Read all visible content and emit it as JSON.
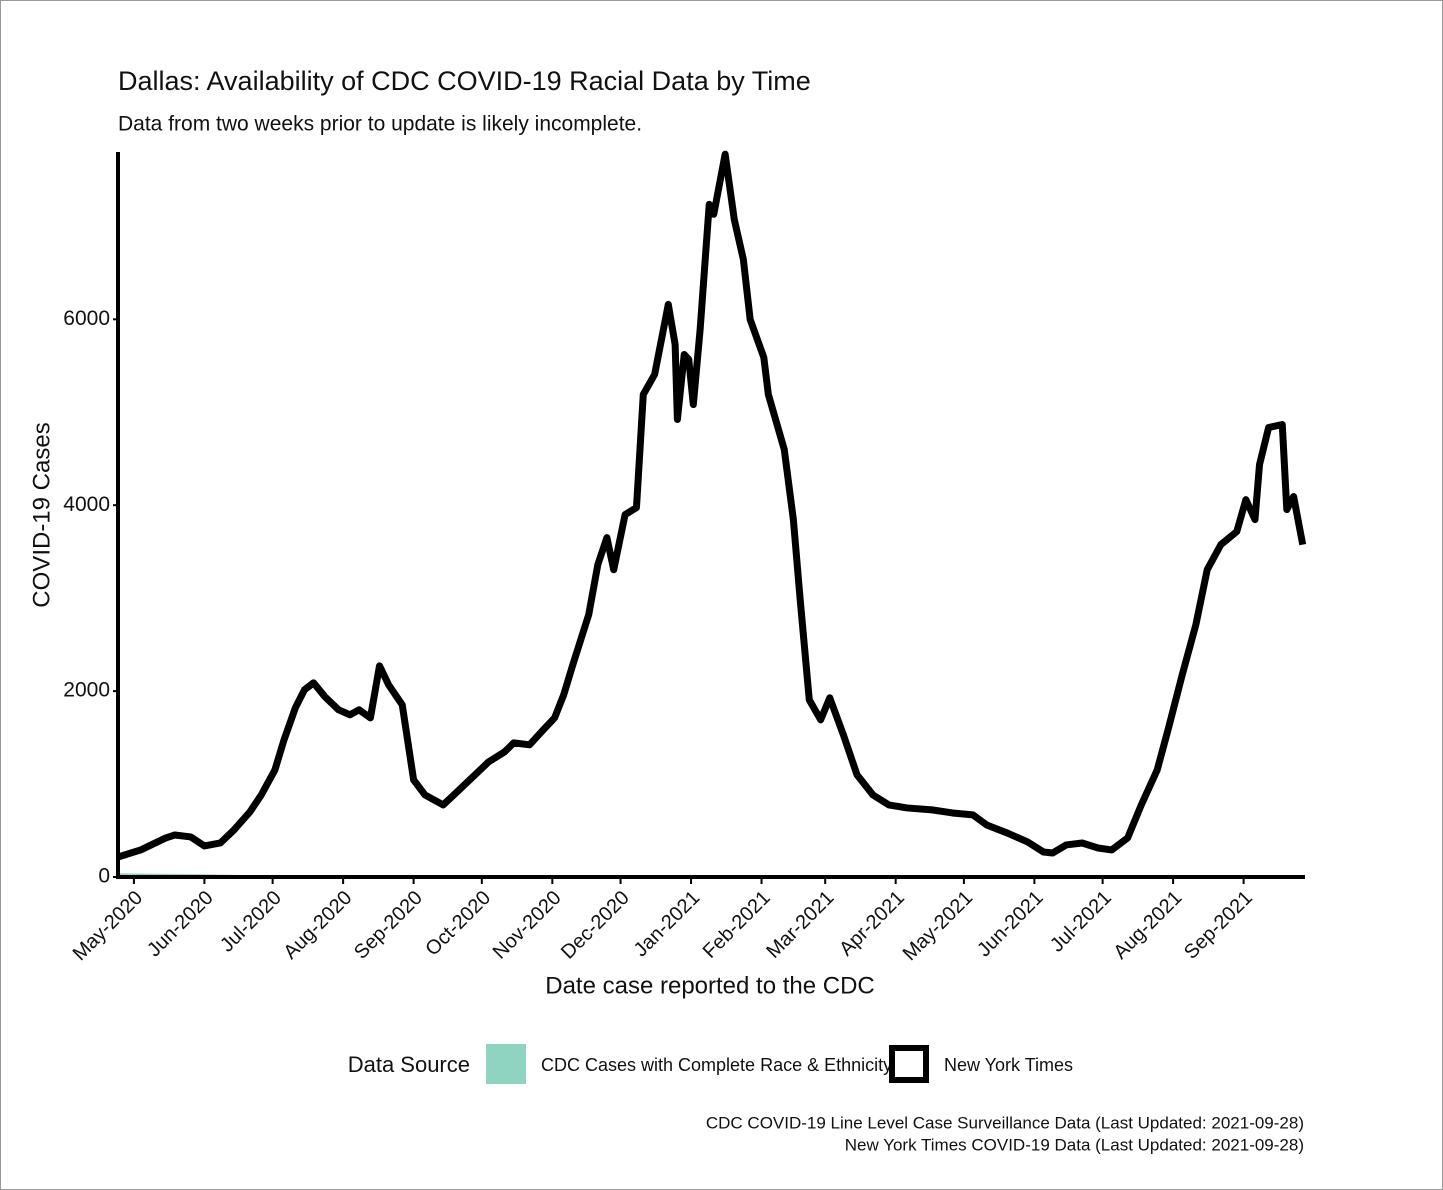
{
  "chart_data": {
    "type": "line",
    "title": "Dallas: Availability of CDC COVID-19 Racial Data by Time",
    "subtitle": "Data from two weeks prior to update is likely incomplete.",
    "x_label": "Date case reported to the CDC",
    "y_label": "COVID-19 Cases",
    "legend_title": "Data Source",
    "caption": [
      "CDC COVID-19 Line Level Case Surveillance Data (Last Updated: 2021-09-28)",
      "New York Times COVID-19 Data (Last Updated: 2021-09-28)"
    ],
    "xlim": [
      "2020-04-24",
      "2021-09-28"
    ],
    "ylim": [
      0,
      7800
    ],
    "yticks": [
      0,
      2000,
      4000,
      6000
    ],
    "xticks": [
      {
        "value": "2020-05-01",
        "label": "May-2020"
      },
      {
        "value": "2020-06-01",
        "label": "Jun-2020"
      },
      {
        "value": "2020-07-01",
        "label": "Jul-2020"
      },
      {
        "value": "2020-08-01",
        "label": "Aug-2020"
      },
      {
        "value": "2020-09-01",
        "label": "Sep-2020"
      },
      {
        "value": "2020-10-01",
        "label": "Oct-2020"
      },
      {
        "value": "2020-11-01",
        "label": "Nov-2020"
      },
      {
        "value": "2020-12-01",
        "label": "Dec-2020"
      },
      {
        "value": "2021-01-01",
        "label": "Jan-2021"
      },
      {
        "value": "2021-02-01",
        "label": "Feb-2021"
      },
      {
        "value": "2021-03-01",
        "label": "Mar-2021"
      },
      {
        "value": "2021-04-01",
        "label": "Apr-2021"
      },
      {
        "value": "2021-05-01",
        "label": "May-2021"
      },
      {
        "value": "2021-06-01",
        "label": "Jun-2021"
      },
      {
        "value": "2021-07-01",
        "label": "Jul-2021"
      },
      {
        "value": "2021-08-01",
        "label": "Aug-2021"
      },
      {
        "value": "2021-09-01",
        "label": "Sep-2021"
      }
    ],
    "series": [
      {
        "name": "CDC Cases with Complete Race & Ethnicity",
        "color": "#8fd3c1",
        "style": "area",
        "x": [
          "2020-04-24",
          "2020-06-01",
          "2020-07-01",
          "2020-09-01",
          "2021-01-01",
          "2021-04-01",
          "2021-09-27"
        ],
        "values": [
          40,
          30,
          15,
          10,
          10,
          8,
          5
        ]
      },
      {
        "name": "New York Times",
        "color": "#000000",
        "style": "line",
        "x": [
          "2020-04-24",
          "2020-05-04",
          "2020-05-15",
          "2020-05-19",
          "2020-05-26",
          "2020-06-01",
          "2020-06-08",
          "2020-06-14",
          "2020-06-21",
          "2020-06-26",
          "2020-07-02",
          "2020-07-06",
          "2020-07-11",
          "2020-07-15",
          "2020-07-19",
          "2020-07-24",
          "2020-07-30",
          "2020-08-04",
          "2020-08-08",
          "2020-08-13",
          "2020-08-17",
          "2020-08-21",
          "2020-08-27",
          "2020-08-30",
          "2020-09-01",
          "2020-09-06",
          "2020-09-10",
          "2020-09-14",
          "2020-09-21",
          "2020-09-28",
          "2020-10-04",
          "2020-10-11",
          "2020-10-15",
          "2020-10-22",
          "2020-10-28",
          "2020-11-02",
          "2020-11-06",
          "2020-11-10",
          "2020-11-17",
          "2020-11-21",
          "2020-11-25",
          "2020-11-28",
          "2020-12-03",
          "2020-12-08",
          "2020-12-11",
          "2020-12-16",
          "2020-12-19",
          "2020-12-22",
          "2020-12-25",
          "2020-12-26",
          "2020-12-29",
          "2020-12-31",
          "2021-01-02",
          "2021-01-05",
          "2021-01-09",
          "2021-01-11",
          "2021-01-16",
          "2021-01-20",
          "2021-01-24",
          "2021-01-27",
          "2021-02-02",
          "2021-02-04",
          "2021-02-11",
          "2021-02-15",
          "2021-02-18",
          "2021-02-22",
          "2021-02-27",
          "2021-03-03",
          "2021-03-09",
          "2021-03-15",
          "2021-03-22",
          "2021-03-29",
          "2021-04-06",
          "2021-04-17",
          "2021-04-26",
          "2021-05-05",
          "2021-05-11",
          "2021-05-20",
          "2021-05-29",
          "2021-06-05",
          "2021-06-09",
          "2021-06-15",
          "2021-06-22",
          "2021-06-29",
          "2021-07-05",
          "2021-07-12",
          "2021-07-18",
          "2021-07-25",
          "2021-07-30",
          "2021-08-05",
          "2021-08-11",
          "2021-08-16",
          "2021-08-22",
          "2021-08-29",
          "2021-09-02",
          "2021-09-06",
          "2021-09-08",
          "2021-09-12",
          "2021-09-18",
          "2021-09-20",
          "2021-09-23",
          "2021-09-27"
        ],
        "values": [
          215,
          291,
          420,
          452,
          431,
          334,
          366,
          506,
          700,
          883,
          1152,
          1475,
          1820,
          2014,
          2089,
          1939,
          1799,
          1745,
          1799,
          1712,
          2272,
          2068,
          1852,
          1368,
          1045,
          883,
          829,
          775,
          937,
          1099,
          1239,
          1346,
          1443,
          1422,
          1583,
          1712,
          1960,
          2283,
          2822,
          3360,
          3651,
          3306,
          3899,
          3974,
          5191,
          5407,
          5783,
          6160,
          5730,
          4922,
          5622,
          5568,
          5083,
          5891,
          7237,
          7130,
          7776,
          7076,
          6645,
          5999,
          5590,
          5191,
          4599,
          3845,
          2983,
          1906,
          1691,
          1928,
          1529,
          1099,
          883,
          775,
          743,
          722,
          689,
          668,
          560,
          474,
          377,
          269,
          258,
          345,
          366,
          312,
          291,
          420,
          775,
          1152,
          1605,
          2175,
          2714,
          3306,
          3576,
          3716,
          4060,
          3845,
          4437,
          4836,
          4868,
          3953,
          4093,
          3576
        ]
      }
    ]
  }
}
